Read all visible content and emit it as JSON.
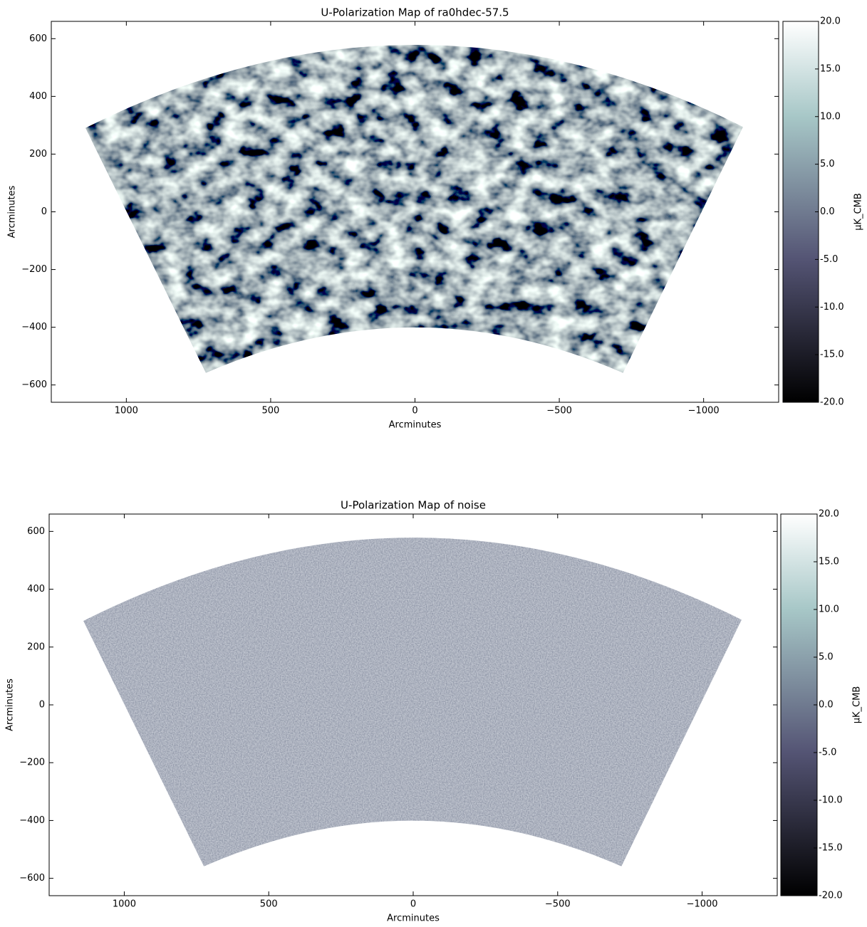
{
  "chart_data": [
    {
      "type": "map",
      "title": "U-Polarization Map of ra0hdec-57.5",
      "xlabel": "Arcminutes",
      "ylabel": "Arcminutes",
      "xlim": [
        1260,
        -1260
      ],
      "ylim": [
        -660,
        660
      ],
      "xticks": [
        1000,
        500,
        0,
        {
          "value": -500,
          "label": "−500"
        },
        {
          "value": -1000,
          "label": "−1000"
        }
      ],
      "yticks": [
        600,
        400,
        200,
        0,
        {
          "value": -200,
          "label": "−200"
        },
        {
          "value": -400,
          "label": "−400"
        },
        {
          "value": -600,
          "label": "−600"
        }
      ],
      "colorbar": {
        "label": "μK_CMB",
        "clim": [
          -20,
          20
        ],
        "colormap": "bone",
        "ticks": [
          {
            "value": 20,
            "label": "20.0"
          },
          {
            "value": 15,
            "label": "15.0"
          },
          {
            "value": 10,
            "label": "10.0"
          },
          {
            "value": 5,
            "label": "5.0"
          },
          {
            "value": 0,
            "label": "0.0"
          },
          {
            "value": -5,
            "label": "-5.0"
          },
          {
            "value": -10,
            "label": "-10.0"
          },
          {
            "value": -15,
            "label": "-15.0"
          },
          {
            "value": -20,
            "label": "-20.0"
          }
        ]
      }
    },
    {
      "type": "map",
      "title": "U-Polarization Map of noise",
      "xlabel": "Arcminutes",
      "ylabel": "Arcminutes",
      "xlim": [
        1260,
        -1260
      ],
      "ylim": [
        -660,
        660
      ],
      "xticks": [
        1000,
        500,
        0,
        {
          "value": -500,
          "label": "−500"
        },
        {
          "value": -1000,
          "label": "−1000"
        }
      ],
      "yticks": [
        600,
        400,
        200,
        0,
        {
          "value": -200,
          "label": "−200"
        },
        {
          "value": -400,
          "label": "−400"
        },
        {
          "value": -600,
          "label": "−600"
        }
      ],
      "colorbar": {
        "label": "μK_CMB",
        "clim": [
          -20,
          20
        ],
        "colormap": "bone",
        "ticks": [
          {
            "value": 20,
            "label": "20.0"
          },
          {
            "value": 15,
            "label": "15.0"
          },
          {
            "value": 10,
            "label": "10.0"
          },
          {
            "value": 5,
            "label": "5.0"
          },
          {
            "value": 0,
            "label": "0.0"
          },
          {
            "value": -5,
            "label": "-5.0"
          },
          {
            "value": -10,
            "label": "-10.0"
          },
          {
            "value": -15,
            "label": "-15.0"
          },
          {
            "value": -20,
            "label": "-20.0"
          }
        ]
      }
    }
  ]
}
